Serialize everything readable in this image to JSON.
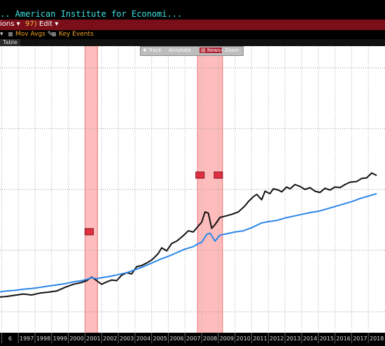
{
  "window": {
    "title": "..  American Institute for Economi..."
  },
  "menu": {
    "actions_label": "ions",
    "edit_number": "97)",
    "edit_label": "Edit"
  },
  "toolbar": {
    "mov_avgs_label": "Mov Avgs",
    "key_events_label": "Key Events"
  },
  "tabs": {
    "table_label": "Table"
  },
  "floating_toolbar": {
    "track": "Track",
    "annotate": "Annotate",
    "news": "News",
    "zoom": "Zoom"
  },
  "colors": {
    "series_black": "#111111",
    "series_blue": "#2a86e8",
    "recession_band": "#ffb0b0",
    "menu_bg": "#7a0f1a"
  },
  "chart_data": {
    "type": "line",
    "x_tick_labels": [
      "6",
      "1997",
      "1998",
      "1999",
      "2000",
      "2001",
      "2002",
      "2003",
      "2004",
      "2005",
      "2006",
      "2007",
      "2008",
      "2009",
      "2010",
      "2011",
      "2012",
      "2013",
      "2014",
      "2015",
      "2016",
      "2017",
      "2018"
    ],
    "recession_bands": [
      [
        2001.0,
        2001.75
      ],
      [
        2007.75,
        2009.25
      ]
    ],
    "event_markers": [
      2001.25,
      2007.9,
      2009.0
    ],
    "series": [
      {
        "color": "black",
        "x": [
          1995.8,
          1996.3,
          1996.8,
          1997.3,
          1997.8,
          1998.3,
          1998.8,
          1999.3,
          1999.8,
          2000.3,
          2000.8,
          2001.1,
          2001.4,
          2001.7,
          2002.0,
          2002.3,
          2002.6,
          2002.9,
          2003.2,
          2003.5,
          2003.8,
          2004.1,
          2004.4,
          2004.7,
          2005.0,
          2005.2,
          2005.4,
          2005.6,
          2005.9,
          2006.2,
          2006.5,
          2006.9,
          2007.2,
          2007.5,
          2007.8,
          2008.0,
          2008.2,
          2008.4,
          2008.6,
          2008.8,
          2009.1,
          2009.4,
          2009.8,
          2010.2,
          2010.6,
          2010.8,
          2011.1,
          2011.3,
          2011.6,
          2011.8,
          2012.1,
          2012.3,
          2012.6,
          2012.8,
          2013.1,
          2013.3,
          2013.6,
          2013.9,
          2014.2,
          2014.5,
          2014.8,
          2015.1,
          2015.4,
          2015.7,
          2016.0,
          2016.3,
          2016.6,
          2016.9,
          2017.3,
          2017.6,
          2017.9,
          2018.2,
          2018.5
        ],
        "y": [
          1200,
          1210,
          1230,
          1250,
          1235,
          1265,
          1280,
          1300,
          1360,
          1410,
          1440,
          1470,
          1530,
          1470,
          1410,
          1450,
          1480,
          1470,
          1560,
          1600,
          1580,
          1700,
          1720,
          1760,
          1810,
          1860,
          1920,
          2010,
          1960,
          2080,
          2120,
          2210,
          2290,
          2270,
          2370,
          2430,
          2600,
          2580,
          2330,
          2390,
          2510,
          2530,
          2560,
          2600,
          2700,
          2770,
          2850,
          2890,
          2800,
          2940,
          2900,
          2980,
          2960,
          2930,
          3010,
          2980,
          3050,
          3020,
          2970,
          3000,
          2940,
          2920,
          2990,
          2960,
          3010,
          3000,
          3050,
          3090,
          3100,
          3150,
          3160,
          3240,
          3200
        ]
      },
      {
        "color": "blue",
        "x": [
          1995.8,
          1996.3,
          1996.8,
          1997.3,
          1997.8,
          1998.3,
          1998.8,
          1999.3,
          1999.8,
          2000.3,
          2000.8,
          2001.1,
          2001.4,
          2001.7,
          2002.0,
          2002.5,
          2003.0,
          2003.5,
          2004.0,
          2004.5,
          2005.0,
          2005.5,
          2006.0,
          2006.5,
          2007.0,
          2007.5,
          2007.8,
          2008.0,
          2008.3,
          2008.5,
          2008.8,
          2009.1,
          2009.5,
          2010.0,
          2010.5,
          2011.0,
          2011.3,
          2011.6,
          2012.0,
          2012.5,
          2013.0,
          2013.5,
          2014.0,
          2014.5,
          2015.0,
          2015.5,
          2016.0,
          2016.5,
          2017.0,
          2017.5,
          2018.0,
          2018.5
        ],
        "y": [
          1280,
          1300,
          1310,
          1330,
          1340,
          1360,
          1380,
          1400,
          1420,
          1450,
          1470,
          1490,
          1520,
          1500,
          1520,
          1540,
          1570,
          1600,
          1650,
          1700,
          1760,
          1820,
          1870,
          1930,
          1990,
          2030,
          2080,
          2100,
          2230,
          2250,
          2120,
          2220,
          2240,
          2270,
          2290,
          2340,
          2380,
          2420,
          2440,
          2460,
          2500,
          2530,
          2560,
          2590,
          2610,
          2650,
          2690,
          2730,
          2770,
          2820,
          2860,
          2900
        ]
      }
    ]
  }
}
